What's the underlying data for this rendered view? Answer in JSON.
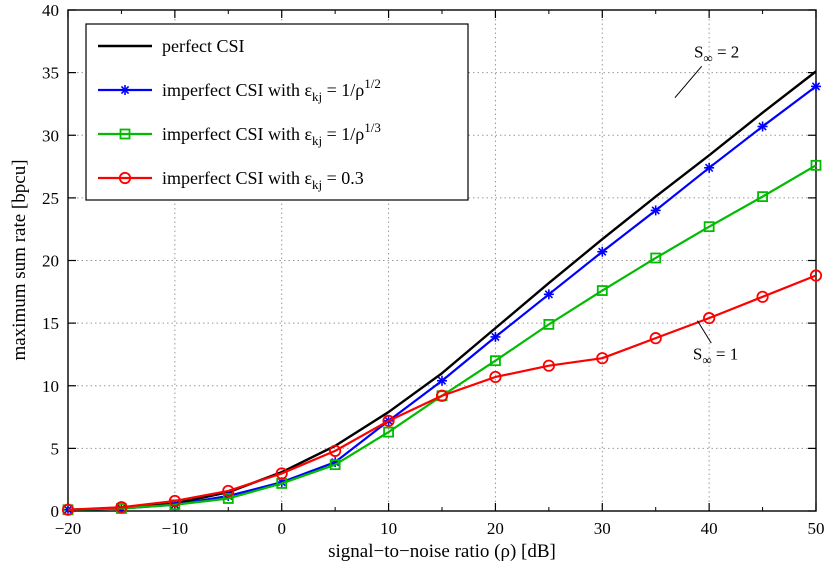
{
  "chart_data": {
    "type": "line",
    "xlabel": "signal−to−noise ratio (ρ) [dB]",
    "ylabel": "maximum sum rate [bpcu]",
    "xlim": [
      -20,
      50
    ],
    "ylim": [
      0,
      40
    ],
    "xticks": [
      -20,
      -10,
      0,
      10,
      20,
      30,
      40,
      50
    ],
    "xminorticks": [
      -15,
      -5,
      5,
      15,
      25,
      35,
      45
    ],
    "yticks": [
      0,
      5,
      10,
      15,
      20,
      25,
      30,
      35,
      40
    ],
    "grid": true,
    "legend_position": "top-left",
    "x": [
      -20,
      -15,
      -10,
      -5,
      0,
      5,
      10,
      15,
      20,
      25,
      30,
      35,
      40,
      45,
      50
    ],
    "series": [
      {
        "name": "perfect CSI",
        "color": "#000000",
        "marker": "none",
        "line_width": 2.4,
        "label_parts": [
          {
            "t": "perfect CSI"
          }
        ],
        "values": [
          0.1,
          0.2,
          0.6,
          1.5,
          3.1,
          5.2,
          7.9,
          11.0,
          14.6,
          18.2,
          21.7,
          25.1,
          28.4,
          31.8,
          35.1
        ]
      },
      {
        "name": "imperfect CSI with ε_kj = 1/ρ^(1/2)",
        "color": "#0000ff",
        "marker": "asterisk",
        "line_width": 2.2,
        "label_parts": [
          {
            "t": "imperfect CSI with ε"
          },
          {
            "t": "kj",
            "style": "sub"
          },
          {
            "t": " = 1/ρ"
          },
          {
            "t": "1/2",
            "style": "sup"
          }
        ],
        "values": [
          0.1,
          0.2,
          0.5,
          1.2,
          2.3,
          3.9,
          7.2,
          10.4,
          13.9,
          17.3,
          20.7,
          24.0,
          27.4,
          30.7,
          33.9
        ]
      },
      {
        "name": "imperfect CSI with ε_kj = 1/ρ^(1/3)",
        "color": "#00bb00",
        "marker": "square",
        "line_width": 2.2,
        "label_parts": [
          {
            "t": "imperfect CSI with ε"
          },
          {
            "t": "kj",
            "style": "sub"
          },
          {
            "t": " = 1/ρ"
          },
          {
            "t": "1/3",
            "style": "sup"
          }
        ],
        "values": [
          0.1,
          0.2,
          0.5,
          1.0,
          2.2,
          3.7,
          6.3,
          9.2,
          12.0,
          14.9,
          17.6,
          20.2,
          22.7,
          25.1,
          27.6
        ]
      },
      {
        "name": "imperfect CSI with ε_kj = 0.3",
        "color": "#ff0000",
        "marker": "circle",
        "line_width": 2.2,
        "label_parts": [
          {
            "t": "imperfect CSI with ε"
          },
          {
            "t": "kj",
            "style": "sub"
          },
          {
            "t": " = 0.3"
          }
        ],
        "values": [
          0.1,
          0.3,
          0.8,
          1.6,
          3.0,
          4.8,
          7.2,
          9.2,
          10.7,
          11.6,
          12.2,
          13.8,
          15.4,
          17.1,
          18.8
        ]
      }
    ],
    "annotations": [
      {
        "name": "S∞ = 2",
        "parts": [
          {
            "t": "S"
          },
          {
            "t": "∞",
            "style": "sub"
          },
          {
            "t": " = 2"
          }
        ],
        "text_at": [
          40.7,
          36.2
        ],
        "line": [
          [
            39.3,
            35.5
          ],
          [
            36.8,
            33.0
          ]
        ]
      },
      {
        "name": "S∞ = 1",
        "parts": [
          {
            "t": "S"
          },
          {
            "t": "∞",
            "style": "sub"
          },
          {
            "t": " = 1"
          }
        ],
        "text_at": [
          40.6,
          12.1
        ],
        "line": [
          [
            40.2,
            13.4
          ],
          [
            38.9,
            15.2
          ]
        ]
      }
    ]
  }
}
